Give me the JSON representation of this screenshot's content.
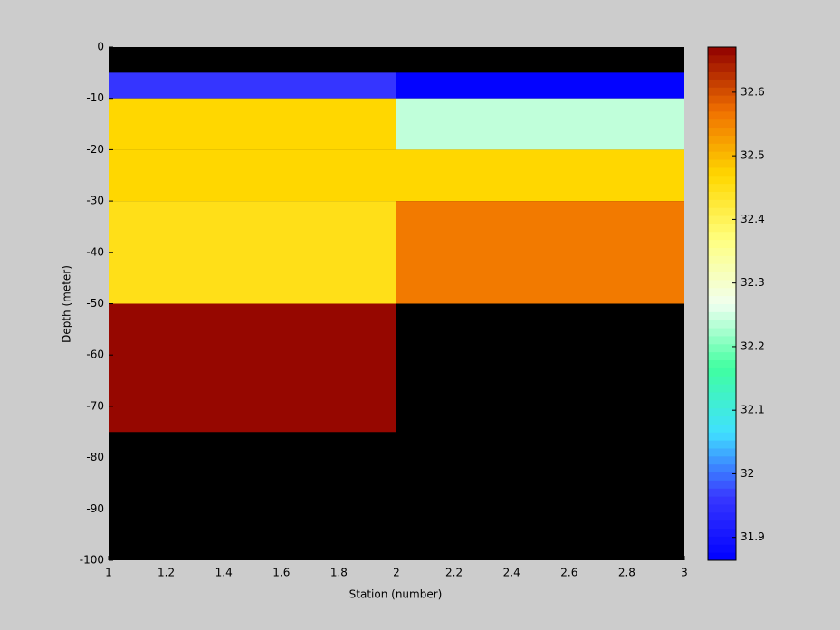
{
  "chart_data": {
    "type": "heatmap",
    "xlabel": "Station (number)",
    "ylabel": "Depth (meter)",
    "x": [
      1,
      2,
      3
    ],
    "y": [
      0,
      -5,
      -10,
      -20,
      -30,
      -50,
      -75,
      -100
    ],
    "values": [
      [
        null,
        null
      ],
      [
        31.96,
        31.87
      ],
      [
        32.47,
        32.24
      ],
      [
        32.47,
        32.47
      ],
      [
        32.45,
        32.56
      ],
      [
        32.665,
        null
      ],
      [
        null,
        null
      ]
    ],
    "xlim": [
      1,
      3
    ],
    "xticks": [
      1,
      1.2,
      1.4,
      1.6,
      1.8,
      2,
      2.2,
      2.4,
      2.6,
      2.8,
      3
    ],
    "ylim": [
      -100,
      0
    ],
    "yticks": [
      0,
      -10,
      -20,
      -30,
      -40,
      -50,
      -60,
      -70,
      -80,
      -90,
      -100
    ],
    "clim": [
      31.864,
      32.671
    ],
    "cticks": [
      31.9,
      32,
      32.1,
      32.2,
      32.3,
      32.4,
      32.5,
      32.6
    ],
    "colormap": [
      "#0000ff",
      "#3838ff",
      "#40e0ff",
      "#40ffa0",
      "#f0fff0",
      "#ffff80",
      "#ffd800",
      "#f07000",
      "#900000"
    ],
    "missing_color": "#000000"
  }
}
